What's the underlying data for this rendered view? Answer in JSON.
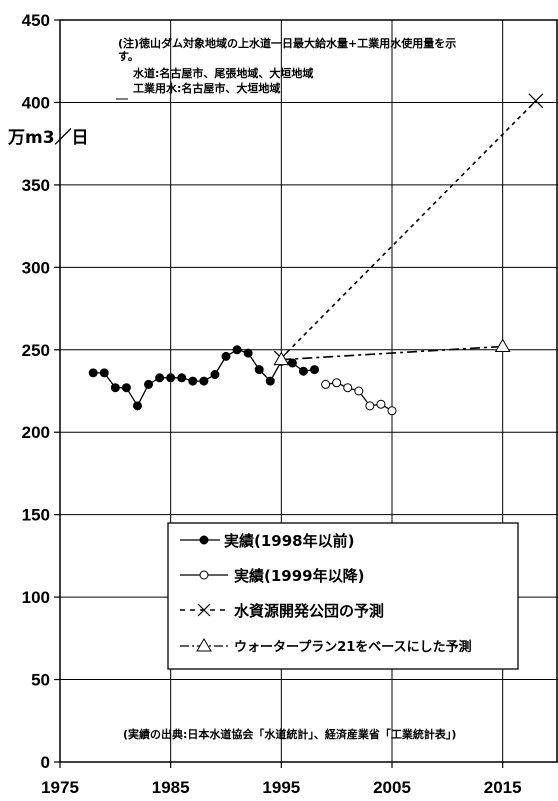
{
  "chart_data": {
    "type": "line",
    "title": "",
    "ylabel": "万m3／日",
    "xlabel": "",
    "xlim": [
      1975,
      2020
    ],
    "ylim": [
      0,
      450
    ],
    "x_ticks": [
      "1975",
      "1985",
      "1995",
      "2005",
      "2015"
    ],
    "y_ticks": [
      "0",
      "50",
      "100",
      "150",
      "200",
      "250",
      "300",
      "350",
      "400",
      "450"
    ],
    "grid": true,
    "note_lines": [
      "(注)徳山ダム対象地域の上水道一日最大給水量+工業用水使用量を示",
      "す。",
      "水道:名古屋市、尾張地域、大垣地域",
      "工業用水:名古屋市、大垣地域"
    ],
    "source_note": "(実績の出典:日本水道協会「水道統計」、経済産業省「工業統計表」)",
    "series": [
      {
        "name": "実績(1998年以前)",
        "style": "solid-filled",
        "color": "#000000",
        "points": [
          [
            1978,
            236
          ],
          [
            1979,
            236
          ],
          [
            1980,
            227
          ],
          [
            1981,
            227
          ],
          [
            1982,
            216
          ],
          [
            1983,
            229
          ],
          [
            1984,
            233
          ],
          [
            1985,
            233
          ],
          [
            1986,
            233
          ],
          [
            1987,
            231
          ],
          [
            1988,
            231
          ],
          [
            1989,
            235
          ],
          [
            1990,
            246
          ],
          [
            1991,
            250
          ],
          [
            1992,
            248
          ],
          [
            1993,
            238
          ],
          [
            1994,
            231
          ],
          [
            1995,
            243
          ],
          [
            1996,
            242
          ],
          [
            1997,
            237
          ],
          [
            1998,
            238
          ]
        ]
      },
      {
        "name": "実績(1999年以降)",
        "style": "solid-open",
        "color": "#000000",
        "points": [
          [
            1999,
            229
          ],
          [
            2000,
            230
          ],
          [
            2001,
            227
          ],
          [
            2002,
            225
          ],
          [
            2003,
            216
          ],
          [
            2004,
            217
          ],
          [
            2005,
            213
          ]
        ]
      },
      {
        "name": "水資源開発公団の予測",
        "style": "dotted-x",
        "color": "#000000",
        "points": [
          [
            1995,
            245
          ],
          [
            2018,
            401
          ]
        ]
      },
      {
        "name": "ウォータープラン21をベースにした予測",
        "style": "dashdot-triangle",
        "color": "#000000",
        "points": [
          [
            1995,
            244
          ],
          [
            2015,
            252
          ]
        ]
      }
    ]
  }
}
